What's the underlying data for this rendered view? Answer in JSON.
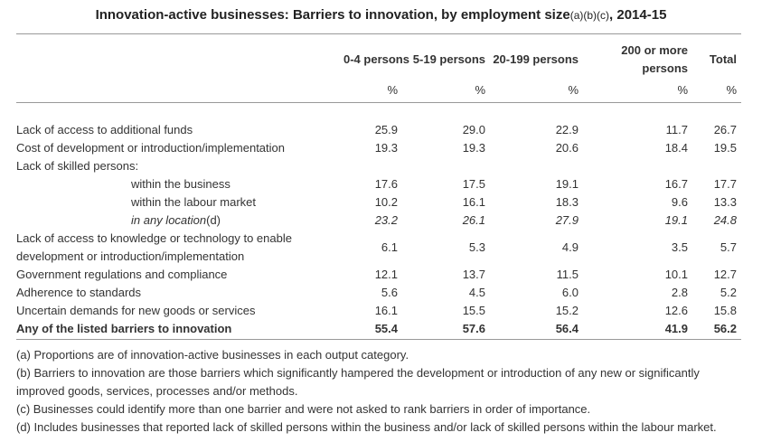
{
  "title": {
    "main": "Innovation-active businesses: Barriers to innovation, by employment size",
    "refs": "(a)(b)(c)",
    "suffix": ", 2014-15"
  },
  "columns": [
    "0-4 persons",
    "5-19 persons",
    "20-199 persons",
    "200 or more persons",
    "Total"
  ],
  "units": [
    "%",
    "%",
    "%",
    "%",
    "%"
  ],
  "rows": [
    {
      "label": "Lack of access to additional funds",
      "values": [
        "25.9",
        "29.0",
        "22.9",
        "11.7",
        "26.7"
      ]
    },
    {
      "label": "Cost of development or introduction/implementation",
      "values": [
        "19.3",
        "19.3",
        "20.6",
        "18.4",
        "19.5"
      ]
    },
    {
      "label": "Lack of skilled persons:",
      "values": []
    },
    {
      "label": "within the business",
      "values": [
        "17.6",
        "17.5",
        "19.1",
        "16.7",
        "17.7"
      ]
    },
    {
      "label": "within the labour market",
      "values": [
        "10.2",
        "16.1",
        "18.3",
        "9.6",
        "13.3"
      ]
    },
    {
      "label": "in any location",
      "note": "(d)",
      "values": [
        "23.2",
        "26.1",
        "27.9",
        "19.1",
        "24.8"
      ]
    },
    {
      "label": "Lack of access to knowledge or technology to enable development or introduction/implementation",
      "values": [
        "6.1",
        "5.3",
        "4.9",
        "3.5",
        "5.7"
      ]
    },
    {
      "label": "Government regulations and compliance",
      "values": [
        "12.1",
        "13.7",
        "11.5",
        "10.1",
        "12.7"
      ]
    },
    {
      "label": "Adherence to standards",
      "values": [
        "5.6",
        "4.5",
        "6.0",
        "2.8",
        "5.2"
      ]
    },
    {
      "label": "Uncertain demands for new goods or services",
      "values": [
        "16.1",
        "15.5",
        "15.2",
        "12.6",
        "15.8"
      ]
    },
    {
      "label": "Any of the listed barriers to innovation",
      "values": [
        "55.4",
        "57.6",
        "56.4",
        "41.9",
        "56.2"
      ]
    }
  ],
  "footnotes": [
    "(a) Proportions are of innovation-active businesses in each output category.",
    "(b) Barriers to innovation are those barriers which significantly hampered the development or introduction of any new or significantly improved goods, services, processes and/or methods.",
    "(c) Businesses could identify more than one barrier and were not asked to rank barriers in order of importance.",
    "(d) Includes businesses that reported lack of skilled persons within the business and/or lack of skilled persons within the labour market."
  ]
}
